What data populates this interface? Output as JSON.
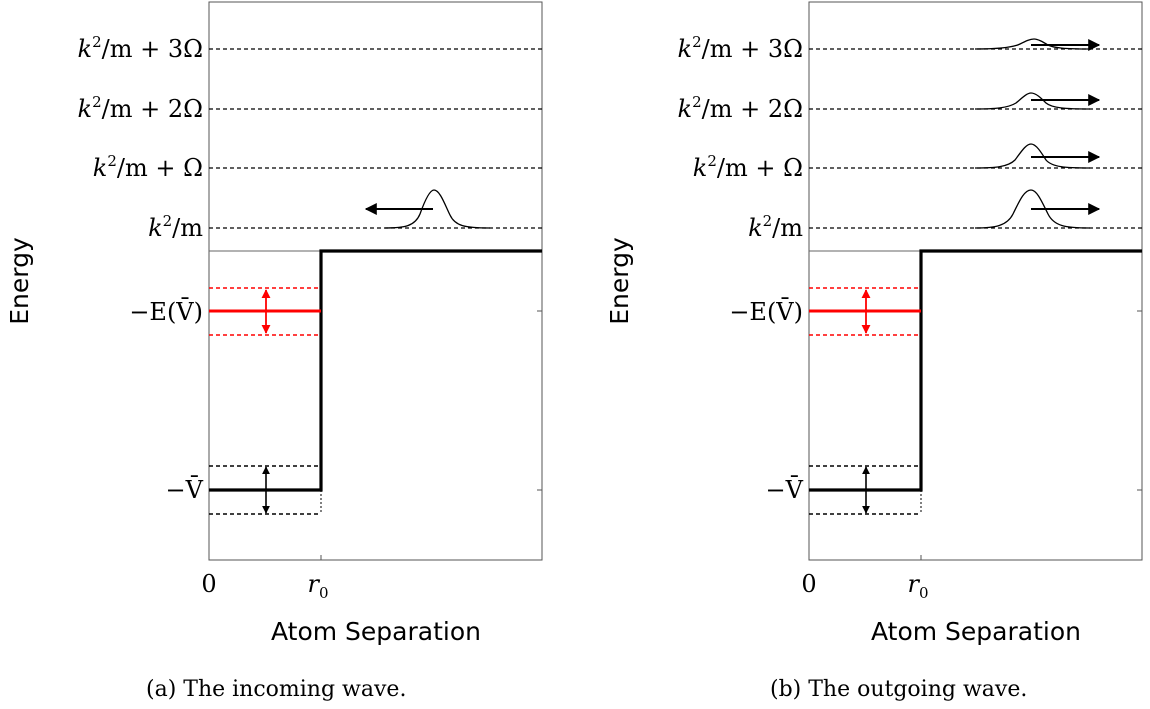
{
  "panels": [
    {
      "id": "a",
      "caption": "(a) The incoming wave.",
      "ylabel": "Energy",
      "xlabel": "Atom Separation",
      "xticks": {
        "zero": "0",
        "r0": "r",
        "r0_sub": "0"
      },
      "levels": [
        {
          "sup_base": "k",
          "sup": "2",
          "rest": "/m + 3Ω"
        },
        {
          "sup_base": "k",
          "sup": "2",
          "rest": "/m + 2Ω"
        },
        {
          "sup_base": "k",
          "sup": "2",
          "rest": "/m + Ω"
        },
        {
          "sup_base": "k",
          "sup": "2",
          "rest": "/m"
        }
      ],
      "bound_label": "−E(V̄)",
      "well_label": "−V̄",
      "wave_direction": "left",
      "colors": {
        "bound": "#ff0000",
        "well": "#000000"
      }
    },
    {
      "id": "b",
      "caption": "(b) The outgoing wave.",
      "ylabel": "Energy",
      "xlabel": "Atom Separation",
      "xticks": {
        "zero": "0",
        "r0": "r",
        "r0_sub": "0"
      },
      "levels": [
        {
          "sup_base": "k",
          "sup": "2",
          "rest": "/m + 3Ω"
        },
        {
          "sup_base": "k",
          "sup": "2",
          "rest": "/m + 2Ω"
        },
        {
          "sup_base": "k",
          "sup": "2",
          "rest": "/m + Ω"
        },
        {
          "sup_base": "k",
          "sup": "2",
          "rest": "/m"
        }
      ],
      "bound_label": "−E(V̄)",
      "well_label": "−V̄",
      "wave_direction": "right",
      "colors": {
        "bound": "#ff0000",
        "well": "#000000"
      }
    }
  ]
}
